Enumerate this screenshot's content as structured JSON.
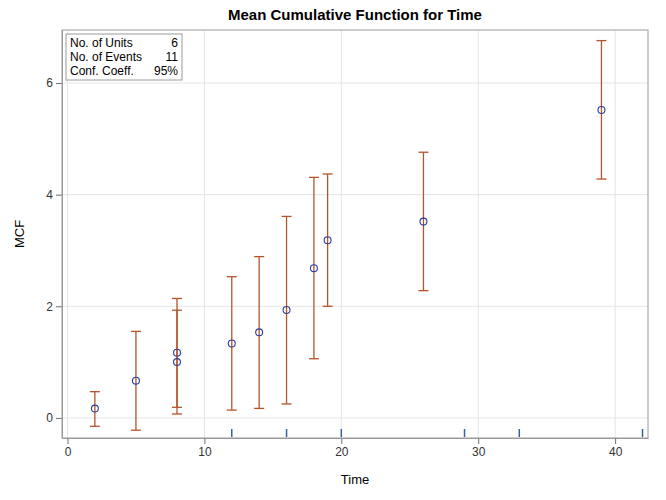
{
  "chart_data": {
    "type": "scatter",
    "title": "Mean Cumulative Function for Time",
    "x_label": "Time",
    "y_label": "MCF",
    "x": [
      2,
      5,
      8,
      8,
      12,
      14,
      16,
      18,
      19,
      26,
      39
    ],
    "values": [
      0.167,
      0.667,
      1.0,
      1.167,
      1.333,
      1.533,
      1.933,
      2.683,
      3.183,
      3.517,
      5.517
    ],
    "lower": [
      -0.15,
      -0.22,
      0.07,
      0.19,
      0.14,
      0.17,
      0.25,
      1.06,
      2.0,
      2.28,
      4.28
    ],
    "upper": [
      0.47,
      1.55,
      1.93,
      2.14,
      2.53,
      2.89,
      3.61,
      4.31,
      4.37,
      4.76,
      6.76
    ],
    "censored": [
      12,
      16,
      20,
      29,
      33,
      42
    ],
    "inset": [
      {
        "label": "No. of Units",
        "value": 6
      },
      {
        "label": "No. of Events",
        "value": 11
      },
      {
        "label": "Conf. Coeff.",
        "value": 95,
        "value_label": "95%"
      }
    ],
    "color": "#2b3d9c",
    "marker": "circle",
    "xlim": [
      -0.4,
      42.4
    ],
    "ylim": [
      -0.36,
      6.95
    ],
    "xticks": [
      0,
      10,
      20,
      30,
      40
    ],
    "yticks": [
      0,
      2,
      4,
      6
    ],
    "grid": true
  }
}
